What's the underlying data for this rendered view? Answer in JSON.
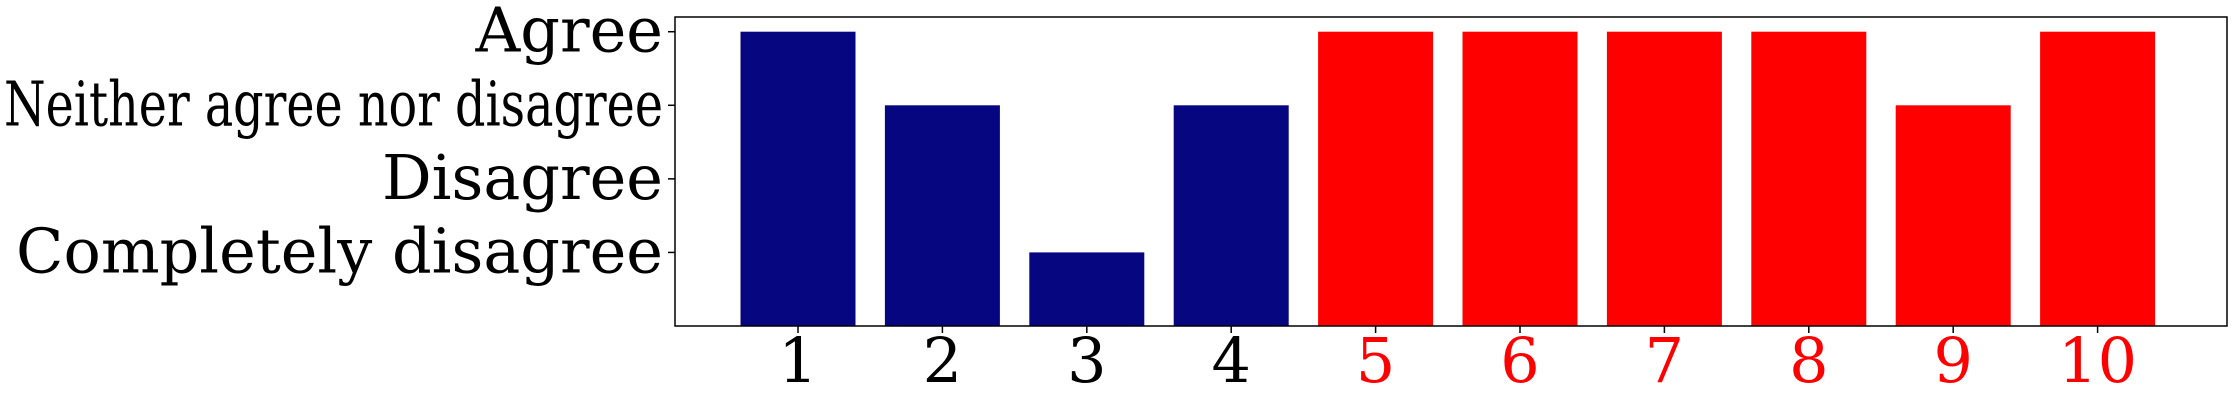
{
  "chart_data": {
    "type": "bar",
    "categories": [
      "1",
      "2",
      "3",
      "4",
      "5",
      "6",
      "7",
      "8",
      "9",
      "10"
    ],
    "values": [
      4,
      3,
      1,
      3,
      4,
      4,
      4,
      4,
      3,
      4
    ],
    "bar_colors": [
      "#060681",
      "#060681",
      "#060681",
      "#060681",
      "#ff0000",
      "#ff0000",
      "#ff0000",
      "#ff0000",
      "#ff0000",
      "#ff0000"
    ],
    "xtick_colors": [
      "#000000",
      "#000000",
      "#000000",
      "#000000",
      "#ff0000",
      "#ff0000",
      "#ff0000",
      "#ff0000",
      "#ff0000",
      "#ff0000"
    ],
    "yticks": [
      {
        "value": 4,
        "label": "Agree"
      },
      {
        "value": 3,
        "label": "Neither agree nor disagree"
      },
      {
        "value": 2,
        "label": "Disagree"
      },
      {
        "value": 1,
        "label": "Completely disagree"
      }
    ],
    "ylim": [
      0,
      4.2
    ],
    "grid": false,
    "title": "",
    "xlabel": "",
    "ylabel": ""
  }
}
